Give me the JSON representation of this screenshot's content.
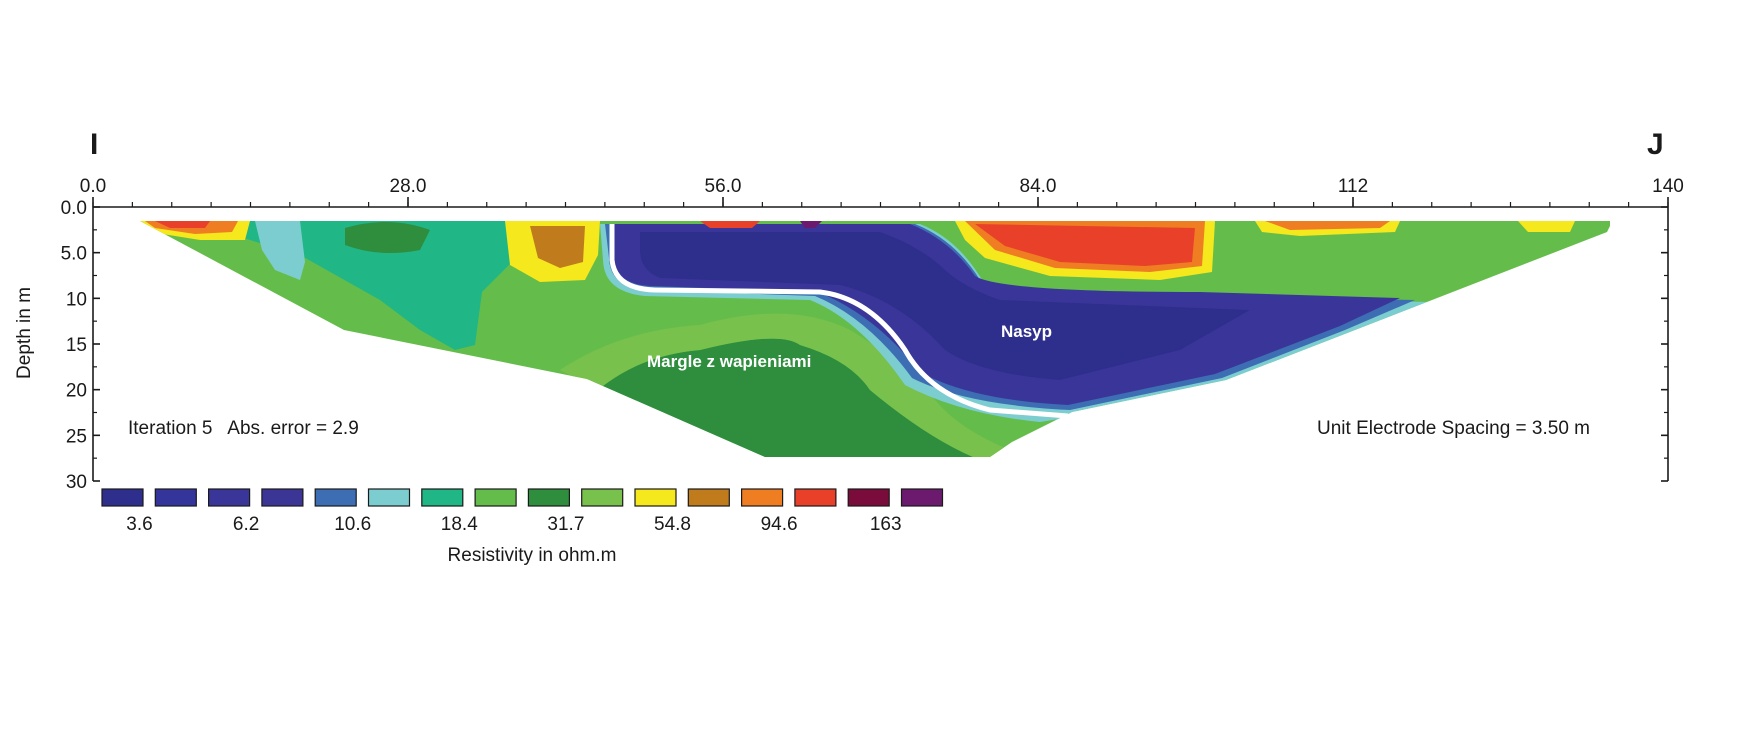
{
  "chart_data": {
    "type": "heatmap",
    "profile_start_label": "I",
    "profile_end_label": "J",
    "x_axis": {
      "ticks": [
        "0.0",
        "28.0",
        "56.0",
        "84.0",
        "112",
        "140"
      ],
      "tick_values": [
        0,
        28,
        56,
        84,
        112,
        140
      ],
      "range": [
        0,
        140
      ]
    },
    "y_axis": {
      "label": "Depth in m",
      "ticks": [
        "0.0",
        "5.0",
        "10",
        "15",
        "20",
        "25",
        "30"
      ],
      "tick_values": [
        0,
        5,
        10,
        15,
        20,
        25,
        30
      ],
      "range": [
        0,
        30
      ],
      "inverted": true
    },
    "annotations": {
      "iteration": "Iteration 5   Abs. error = 2.9",
      "electrode_spacing": "Unit Electrode Spacing = 3.50 m",
      "zones": [
        {
          "text": "Nasyp",
          "x": 85.5,
          "depth": 14
        },
        {
          "text": "Margle z wapieniami",
          "x": 59,
          "depth": 17.5
        }
      ]
    },
    "legend": {
      "title": "Resistivity in ohm.m",
      "labels": [
        "3.6",
        "6.2",
        "10.6",
        "18.4",
        "31.7",
        "54.8",
        "94.6",
        "163"
      ],
      "colors": [
        "#2e2f8c",
        "#33359a",
        "#3a3699",
        "#3b3696",
        "#3d6eb3",
        "#7ccdd0",
        "#20b685",
        "#64bd4a",
        "#2e8e3e",
        "#78c14d",
        "#f5e81c",
        "#c07b1c",
        "#ef7d22",
        "#e9402a",
        "#7a0c3b",
        "#6b1a6e"
      ]
    },
    "sections": {
      "model_bottom_depth": 27.4,
      "boundary_line": "white"
    }
  }
}
